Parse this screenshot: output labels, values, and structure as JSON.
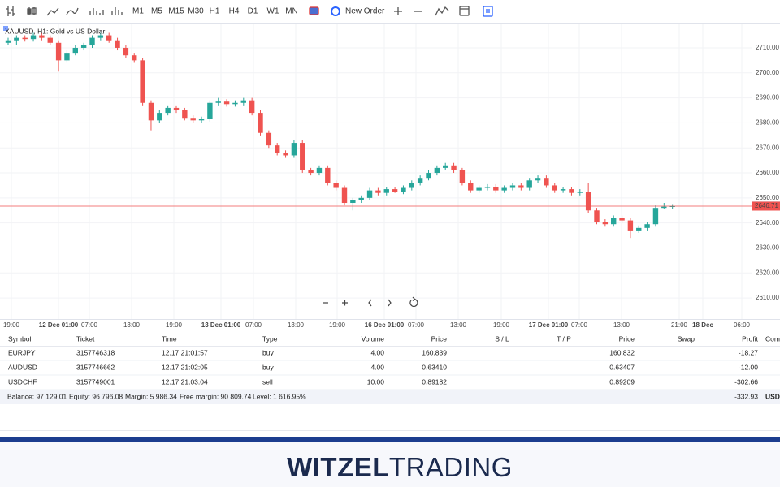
{
  "toolbar": {
    "timeframes": [
      "M1",
      "M5",
      "M15",
      "M30",
      "H1",
      "H4",
      "D1",
      "W1",
      "MN"
    ],
    "active": "H1",
    "new_order": "New Order"
  },
  "chart_data": {
    "type": "candlestick",
    "title": "XAUUSD, H1: Gold vs US Dollar",
    "open": [
      2712,
      2713,
      2714,
      2713.5,
      2715,
      2714,
      2712,
      2705,
      2708,
      2710,
      2711,
      2714,
      2715,
      2713,
      2710,
      2707,
      2705,
      2688,
      2681,
      2684,
      2686,
      2685,
      2682,
      2681,
      2681.5,
      2688,
      2688.5,
      2687.5,
      2688,
      2689,
      2684,
      2676,
      2671,
      2668,
      2667,
      2672,
      2661,
      2660,
      2662,
      2656,
      2654,
      2648,
      2649,
      2650,
      2653,
      2652,
      2653.5,
      2652.5,
      2654,
      2656,
      2658,
      2660,
      2662,
      2663,
      2661,
      2656,
      2653,
      2654,
      2654.5,
      2653,
      2654,
      2655,
      2654,
      2657,
      2658,
      2655,
      2653,
      2653.5,
      2652,
      2652.5,
      2645,
      2640.5,
      2639.5,
      2642,
      2641,
      2637,
      2638,
      2639.5,
      2646,
      2646.5
    ],
    "high": [
      2714,
      2715,
      2715,
      2716,
      2716,
      2715,
      2713,
      2709,
      2711,
      2712,
      2715,
      2716,
      2716,
      2714,
      2711,
      2708,
      2706,
      2689,
      2685,
      2687,
      2687,
      2686,
      2683,
      2682.5,
      2689,
      2690,
      2689.5,
      2689,
      2690,
      2690,
      2685,
      2677,
      2672,
      2669,
      2673,
      2673,
      2662,
      2663,
      2663,
      2657,
      2655,
      2650,
      2651,
      2654,
      2654,
      2654.5,
      2654.5,
      2655,
      2657,
      2659,
      2661,
      2663,
      2664,
      2664,
      2662,
      2657,
      2655,
      2655.5,
      2655.5,
      2655,
      2656,
      2656,
      2658,
      2659,
      2659,
      2656,
      2654.5,
      2654.5,
      2653.5,
      2656,
      2646,
      2641.5,
      2643,
      2643,
      2642,
      2639,
      2640.5,
      2647,
      2648,
      2647.5
    ],
    "low": [
      2711,
      2711,
      2712.5,
      2712.5,
      2713,
      2711,
      2700.5,
      2704,
      2707,
      2709,
      2710,
      2713,
      2712,
      2709,
      2706,
      2704,
      2687,
      2677,
      2680,
      2683,
      2684,
      2681,
      2680,
      2680,
      2680.5,
      2687,
      2686.5,
      2686.5,
      2687,
      2683,
      2675,
      2670,
      2667,
      2666,
      2666,
      2660,
      2659,
      2659,
      2655,
      2653,
      2647,
      2645,
      2648,
      2649,
      2651,
      2651,
      2652,
      2651.5,
      2653,
      2655,
      2657,
      2659,
      2661,
      2660,
      2655,
      2652,
      2652,
      2653,
      2652,
      2652,
      2653,
      2653,
      2653,
      2656,
      2654,
      2652,
      2652,
      2651,
      2651,
      2644,
      2639.5,
      2638.5,
      2638.5,
      2640,
      2634,
      2636,
      2637,
      2638.5,
      2645.5,
      2645.5
    ],
    "close": [
      2713,
      2714,
      2713.5,
      2715,
      2714,
      2712,
      2705,
      2708,
      2710,
      2711,
      2714,
      2715,
      2713,
      2710,
      2707,
      2705,
      2688,
      2681,
      2684,
      2686,
      2685,
      2682,
      2681,
      2681.5,
      2688,
      2688.5,
      2687.5,
      2688,
      2689,
      2684,
      2676,
      2671,
      2668,
      2667,
      2672,
      2661,
      2660,
      2662,
      2656,
      2654,
      2648,
      2649,
      2650,
      2653,
      2652,
      2653.5,
      2652.5,
      2654,
      2656,
      2658,
      2660,
      2662,
      2663,
      2661,
      2656,
      2653,
      2654,
      2654.5,
      2653,
      2654,
      2655,
      2654,
      2657,
      2658,
      2655,
      2653,
      2653.5,
      2652,
      2652.5,
      2645,
      2640.5,
      2639.5,
      2642,
      2641,
      2637,
      2638,
      2639.5,
      2646,
      2646.5,
      2646.71
    ],
    "up_color": "#26a69a",
    "down_color": "#ef5350",
    "ylim": [
      2601.6,
      2719.4
    ],
    "yticks": [
      {
        "value": 2610,
        "label": "2610.00"
      },
      {
        "value": 2620,
        "label": "2620.00"
      },
      {
        "value": 2630,
        "label": "2630.00"
      },
      {
        "value": 2640,
        "label": "2640.00"
      },
      {
        "value": 2650,
        "label": "2650.00"
      },
      {
        "value": 2660,
        "label": "2660.00"
      },
      {
        "value": 2670,
        "label": "2670.00"
      },
      {
        "value": 2680,
        "label": "2680.00"
      },
      {
        "value": 2690,
        "label": "2690.00"
      },
      {
        "value": 2700,
        "label": "2700.00"
      },
      {
        "value": 2710,
        "label": "2710.00"
      }
    ],
    "time_labels": [
      "19:00",
      "12 Dec 01:00",
      "07:00",
      "13:00",
      "19:00",
      "13 Dec 01:00",
      "07:00",
      "13:00",
      "19:00",
      "16 Dec 01:00",
      "07:00",
      "13:00",
      "19:00",
      "17 Dec 01:00",
      "07:00",
      "13:00",
      "21:00",
      "18 Dec",
      "06:00"
    ],
    "ask_price": 2646.87,
    "last_price": 2646.71
  },
  "table": {
    "headers": [
      "Symbol",
      "Ticket",
      "Time",
      "Type",
      "Volume",
      "Price",
      "S / L",
      "T / P",
      "Price",
      "Swap",
      "Profit",
      "Comm"
    ],
    "rows": [
      [
        "EURJPY",
        "3157746318",
        "12.17 21:01:57",
        "buy",
        "4.00",
        "160.839",
        "",
        "",
        "160.832",
        "",
        "-18.27",
        ""
      ],
      [
        "AUDUSD",
        "3157746662",
        "12.17 21:02:05",
        "buy",
        "4.00",
        "0.63410",
        "",
        "",
        "0.63407",
        "",
        "-12.00",
        ""
      ],
      [
        "USDCHF",
        "3157749001",
        "12.17 21:03:04",
        "sell",
        "10.00",
        "0.89182",
        "",
        "",
        "0.89209",
        "",
        "-302.66",
        ""
      ]
    ],
    "summary": [
      "Balance: 97 129.01",
      "Equity: 96 796.08",
      "Margin: 5 986.34",
      "Free margin: 90 809.74",
      "Level: 1 616.95%"
    ],
    "total_profit": "-332.93",
    "currency": "USD"
  },
  "logo": {
    "bold": "WITZEL",
    "light": "TRADING"
  }
}
